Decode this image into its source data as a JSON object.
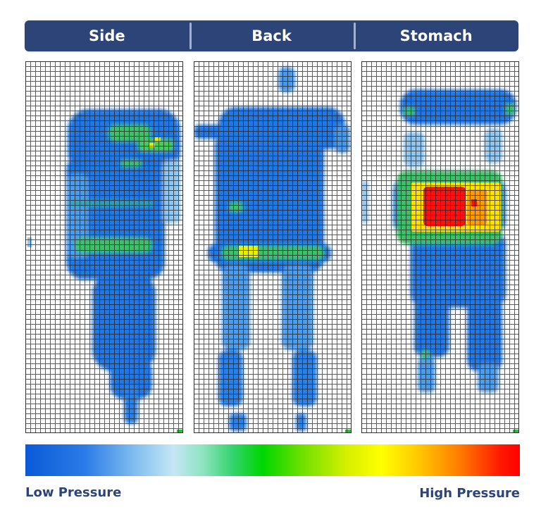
{
  "tabs": [
    {
      "label": "Side"
    },
    {
      "label": "Back"
    },
    {
      "label": "Stomach"
    }
  ],
  "legend": {
    "low_label": "Low Pressure",
    "high_label": "High Pressure",
    "colors": [
      "#0a5ad8",
      "#7fbcf0",
      "#33d36b",
      "#ffff00",
      "#ff7a00",
      "#ff0000"
    ]
  },
  "chart_data": {
    "type": "heatmap",
    "grid": true,
    "grid_cells": {
      "cols": 32,
      "rows": 75
    },
    "scale": {
      "min_label": "Low Pressure",
      "max_label": "High Pressure"
    },
    "panels": [
      {
        "name": "Side",
        "body": "#2277e0",
        "hot_zones": [
          {
            "level": "medium",
            "color": "#3fbf6a",
            "area": "shoulder"
          },
          {
            "level": "high",
            "color": "#e8f000",
            "area": "shoulder point"
          },
          {
            "level": "medium",
            "color": "#3fbf6a",
            "area": "hip"
          }
        ]
      },
      {
        "name": "Back",
        "body": "#2277e0",
        "hot_zones": [
          {
            "level": "medium",
            "color": "#3fbf6a",
            "area": "lower back band"
          },
          {
            "level": "high",
            "color": "#e8f000",
            "area": "sacrum"
          }
        ]
      },
      {
        "name": "Stomach",
        "body": "#2277e0",
        "hot_zones": [
          {
            "level": "high",
            "color": "#ffe000",
            "area": "abdomen"
          },
          {
            "level": "max",
            "color": "#ff1010",
            "area": "abdomen center"
          }
        ]
      }
    ]
  }
}
